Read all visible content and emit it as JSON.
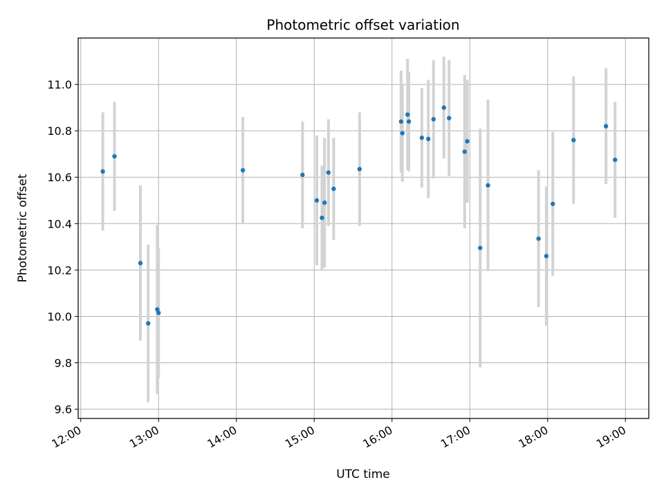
{
  "chart_data": {
    "type": "scatter",
    "title": "Photometric offset variation",
    "xlabel": "UTC time",
    "ylabel": "Photometric offset",
    "x_axis": "time",
    "xlim": [
      "11:58",
      "19:18"
    ],
    "ylim": [
      9.56,
      11.2
    ],
    "xticks": [
      "12:00",
      "13:00",
      "14:00",
      "15:00",
      "16:00",
      "17:00",
      "18:00",
      "19:00"
    ],
    "yticks": [
      "9.6",
      "9.8",
      "10.0",
      "10.2",
      "10.4",
      "10.6",
      "10.8",
      "11.0"
    ],
    "grid": true,
    "legend": "none",
    "colors": {
      "point": "#1f77b4",
      "errorbar": "#d3d3d3",
      "grid": "#b0b0b0"
    },
    "series": [
      {
        "points": [
          {
            "x": "12:17",
            "y": 10.625,
            "err": 0.255
          },
          {
            "x": "12:26",
            "y": 10.69,
            "err": 0.235
          },
          {
            "x": "12:46",
            "y": 10.23,
            "err": 0.335
          },
          {
            "x": "12:52",
            "y": 9.97,
            "err": 0.34
          },
          {
            "x": "12:59",
            "y": 10.03,
            "err": 0.365
          },
          {
            "x": "13:00",
            "y": 10.015,
            "err": 0.28
          },
          {
            "x": "14:05",
            "y": 10.63,
            "err": 0.23
          },
          {
            "x": "14:51",
            "y": 10.61,
            "err": 0.23
          },
          {
            "x": "15:02",
            "y": 10.5,
            "err": 0.28
          },
          {
            "x": "15:06",
            "y": 10.425,
            "err": 0.225
          },
          {
            "x": "15:08",
            "y": 10.49,
            "err": 0.28
          },
          {
            "x": "15:11",
            "y": 10.62,
            "err": 0.23
          },
          {
            "x": "15:15",
            "y": 10.55,
            "err": 0.22
          },
          {
            "x": "15:35",
            "y": 10.635,
            "err": 0.245
          },
          {
            "x": "16:07",
            "y": 10.84,
            "err": 0.22
          },
          {
            "x": "16:08",
            "y": 10.79,
            "err": 0.21
          },
          {
            "x": "16:12",
            "y": 10.87,
            "err": 0.24
          },
          {
            "x": "16:13",
            "y": 10.84,
            "err": 0.215
          },
          {
            "x": "16:23",
            "y": 10.77,
            "err": 0.215
          },
          {
            "x": "16:28",
            "y": 10.765,
            "err": 0.255
          },
          {
            "x": "16:32",
            "y": 10.85,
            "err": 0.255
          },
          {
            "x": "16:40",
            "y": 10.9,
            "err": 0.22
          },
          {
            "x": "16:44",
            "y": 10.855,
            "err": 0.25
          },
          {
            "x": "16:56",
            "y": 10.71,
            "err": 0.33
          },
          {
            "x": "16:58",
            "y": 10.755,
            "err": 0.265
          },
          {
            "x": "17:08",
            "y": 10.295,
            "err": 0.515
          },
          {
            "x": "17:14",
            "y": 10.565,
            "err": 0.37
          },
          {
            "x": "17:53",
            "y": 10.335,
            "err": 0.295
          },
          {
            "x": "17:59",
            "y": 10.26,
            "err": 0.3
          },
          {
            "x": "18:04",
            "y": 10.485,
            "err": 0.31
          },
          {
            "x": "18:20",
            "y": 10.76,
            "err": 0.275
          },
          {
            "x": "18:45",
            "y": 10.82,
            "err": 0.25
          },
          {
            "x": "18:52",
            "y": 10.675,
            "err": 0.25
          }
        ]
      }
    ]
  }
}
